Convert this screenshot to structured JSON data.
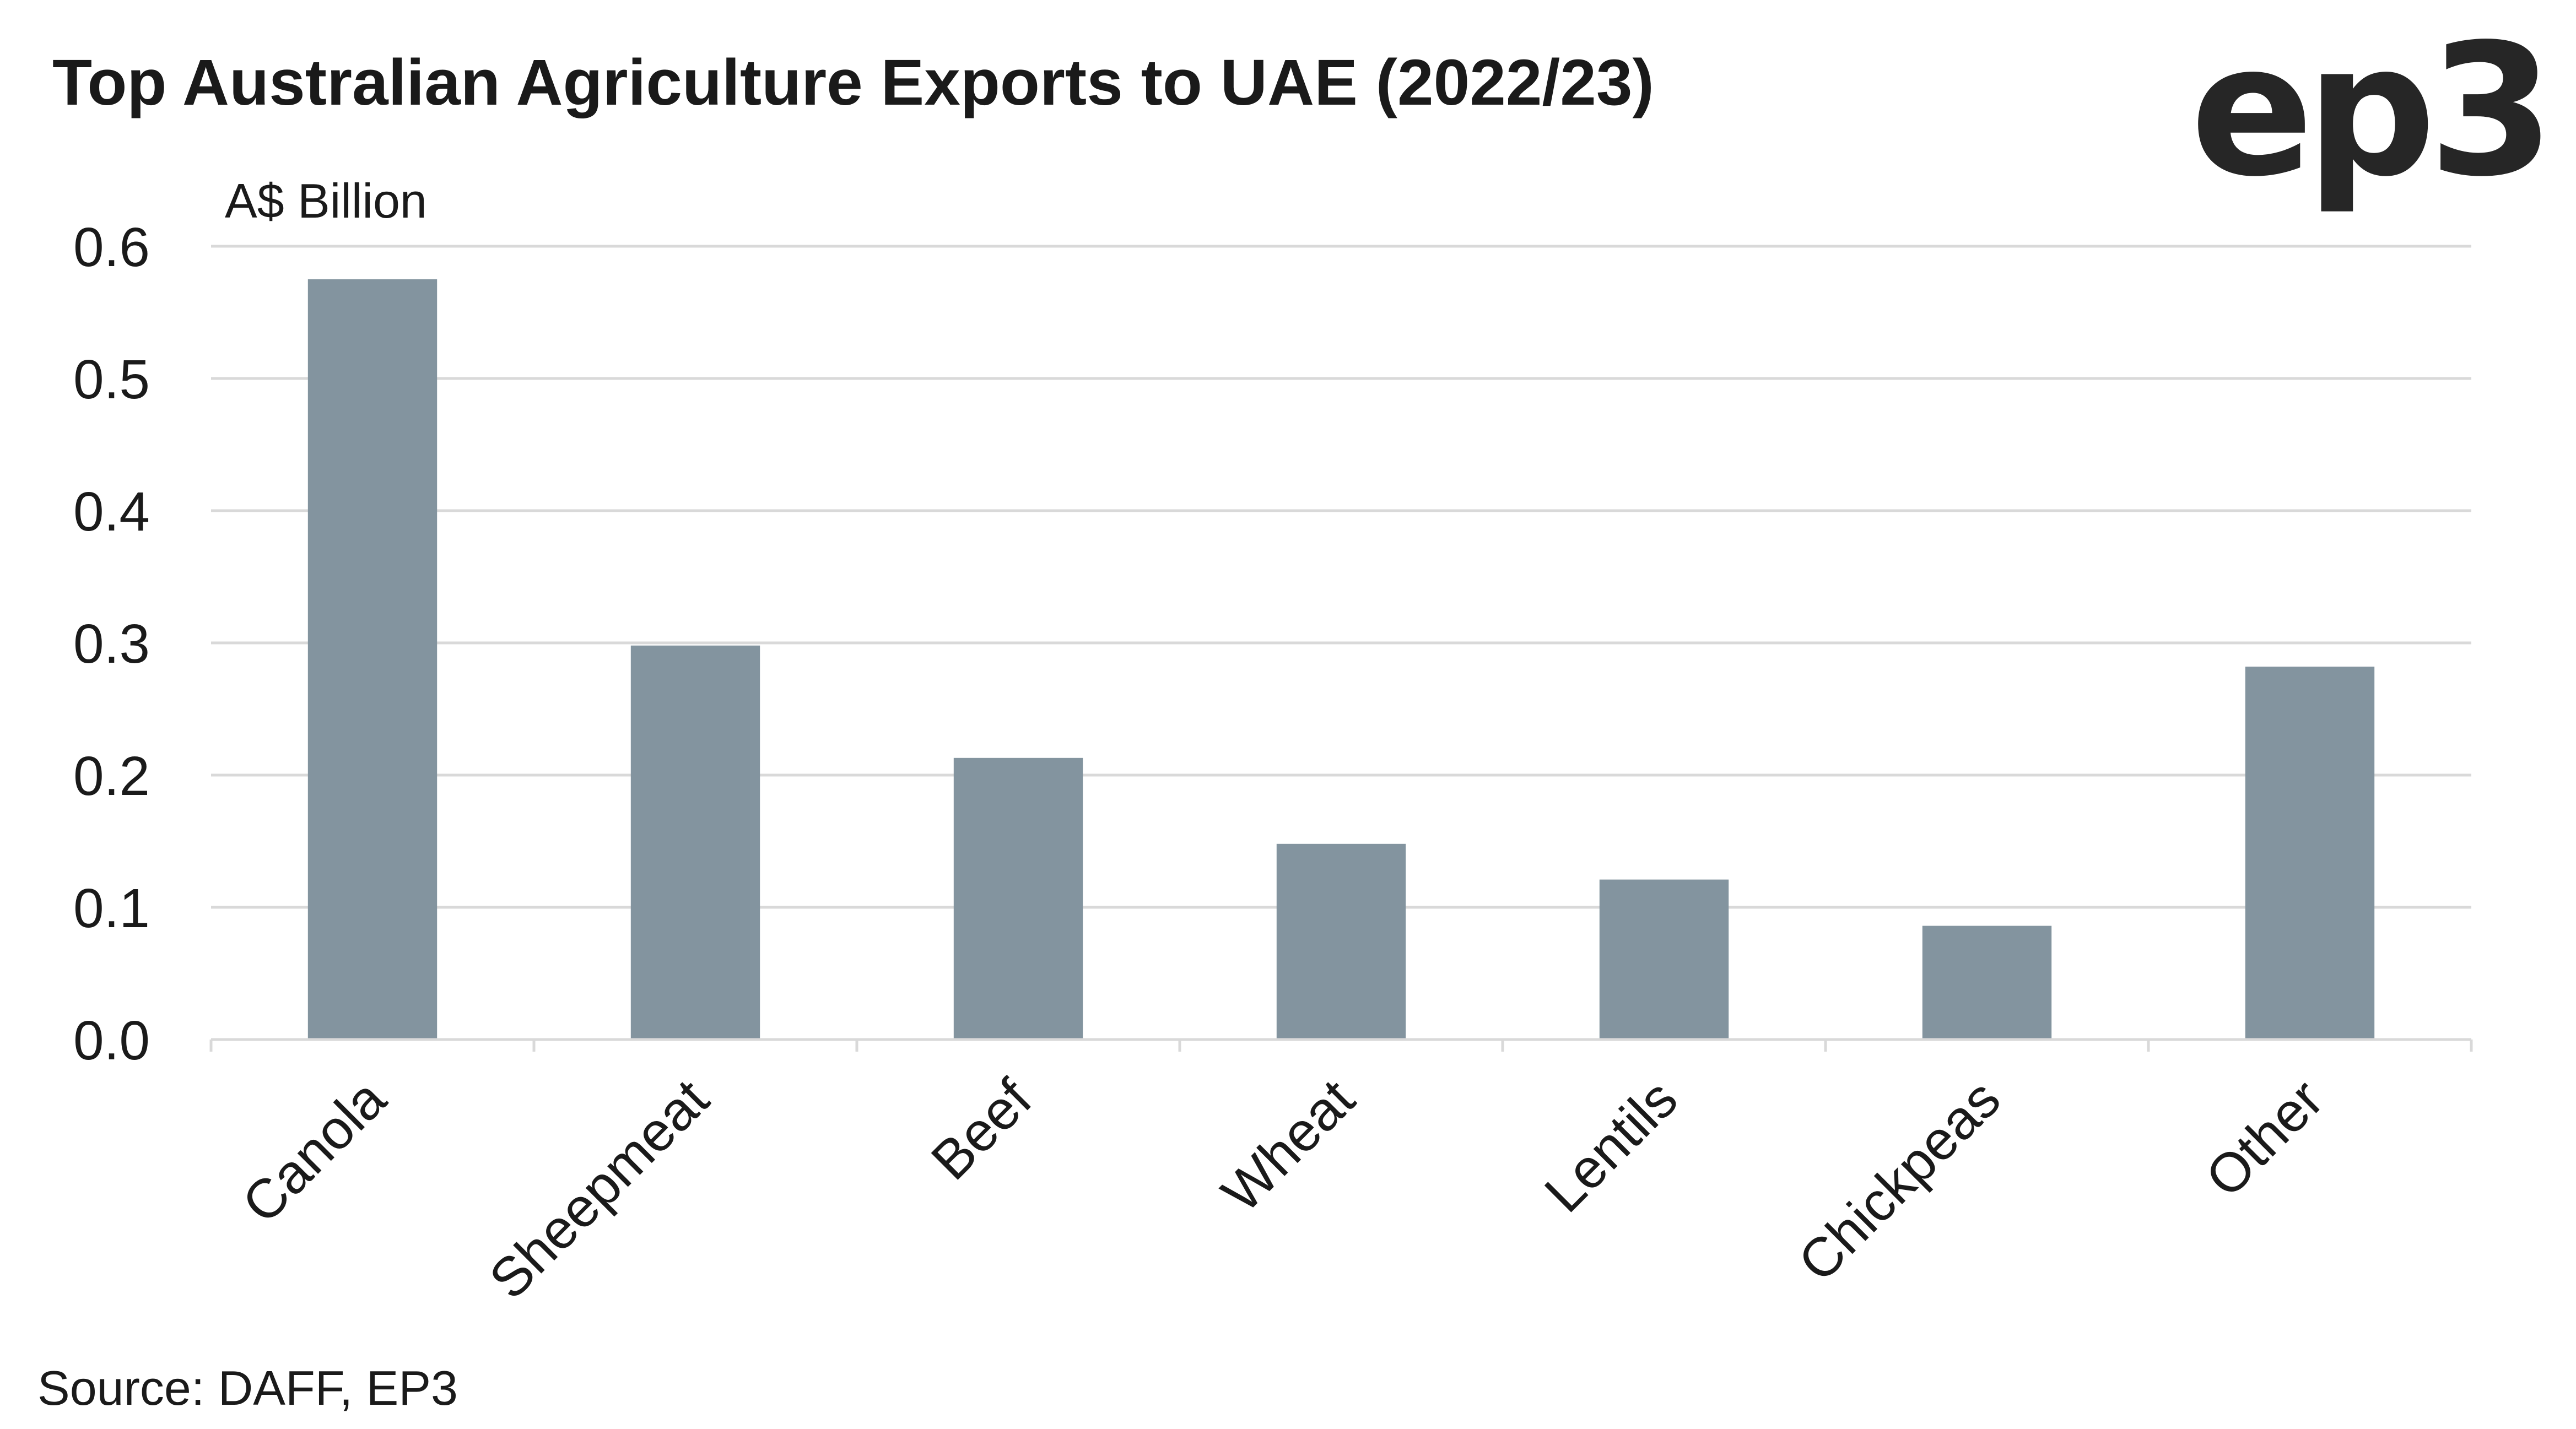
{
  "chart_data": {
    "type": "bar",
    "title": "Top Australian Agriculture Exports to UAE (2022/23)",
    "ylabel": "A$ Billion",
    "xlabel": "",
    "categories": [
      "Canola",
      "Sheepmeat",
      "Beef",
      "Wheat",
      "Lentils",
      "Chickpeas",
      "Other"
    ],
    "values": [
      0.575,
      0.298,
      0.213,
      0.148,
      0.121,
      0.086,
      0.282
    ],
    "ylim": [
      0,
      0.6
    ],
    "yticks": [
      "0.0",
      "0.1",
      "0.2",
      "0.3",
      "0.4",
      "0.5",
      "0.6"
    ],
    "grid": "horizontal",
    "legend": "none",
    "bar_color": "#83949f",
    "source": "Source: DAFF, EP3"
  },
  "brand": {
    "logo": "ep3",
    "logo_color": "#262626"
  }
}
